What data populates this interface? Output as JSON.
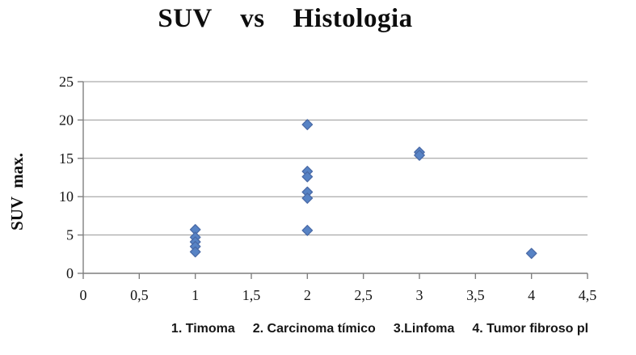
{
  "display": {
    "title": "SUV    vs    Histologia",
    "y_axis_label": "SUV  max.",
    "categories": [
      "1. Timoma",
      "2. Carcinoma tímico",
      "3.Linfoma",
      "4. Tumor fibroso pl"
    ]
  },
  "colors": {
    "marker_fill": "#5783c5",
    "marker_stroke": "#4a6aa6",
    "gridline": "#969696",
    "axis": "#7f7f7f",
    "text": "#141414"
  },
  "chart_data": {
    "type": "scatter",
    "title": "SUV vs Histologia",
    "ylabel": "SUV max.",
    "xlabel": "",
    "xlim": [
      0,
      4.5
    ],
    "ylim": [
      0,
      25
    ],
    "grid": "horizontal",
    "legend": "none",
    "marker": "diamond",
    "x_ticks": [
      {
        "value": 0,
        "label": "0"
      },
      {
        "value": 0.5,
        "label": "0,5"
      },
      {
        "value": 1,
        "label": "1"
      },
      {
        "value": 1.5,
        "label": "1,5"
      },
      {
        "value": 2,
        "label": "2"
      },
      {
        "value": 2.5,
        "label": "2,5"
      },
      {
        "value": 3,
        "label": "3"
      },
      {
        "value": 3.5,
        "label": "3,5"
      },
      {
        "value": 4,
        "label": "4"
      },
      {
        "value": 4.5,
        "label": "4,5"
      }
    ],
    "y_ticks": [
      {
        "value": 0,
        "label": "0"
      },
      {
        "value": 5,
        "label": "5"
      },
      {
        "value": 10,
        "label": "10"
      },
      {
        "value": 15,
        "label": "15"
      },
      {
        "value": 20,
        "label": "20"
      },
      {
        "value": 25,
        "label": "25"
      }
    ],
    "category_key": [
      "1. Timoma",
      "2. Carcinoma tímico",
      "3.Linfoma",
      "4. Tumor fibroso pl"
    ],
    "series": [
      {
        "name": "SUV max.",
        "points": [
          {
            "x": 1,
            "y": 5.7
          },
          {
            "x": 1,
            "y": 4.7
          },
          {
            "x": 1,
            "y": 4.1
          },
          {
            "x": 1,
            "y": 3.5
          },
          {
            "x": 1,
            "y": 2.8
          },
          {
            "x": 2,
            "y": 19.4
          },
          {
            "x": 2,
            "y": 13.3
          },
          {
            "x": 2,
            "y": 12.6
          },
          {
            "x": 2,
            "y": 10.6
          },
          {
            "x": 2,
            "y": 9.8
          },
          {
            "x": 2,
            "y": 5.6
          },
          {
            "x": 3,
            "y": 15.8
          },
          {
            "x": 3,
            "y": 15.4
          },
          {
            "x": 4,
            "y": 2.6
          }
        ]
      }
    ]
  }
}
